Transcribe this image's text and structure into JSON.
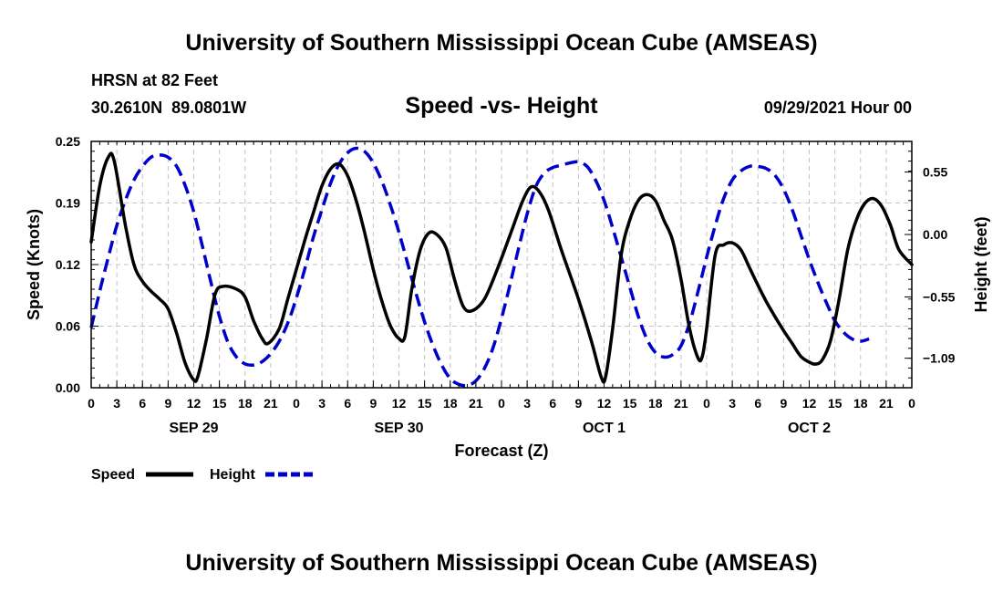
{
  "header": {
    "title": "University of Southern Mississippi Ocean Cube (AMSEAS)",
    "station": "HRSN at 82 Feet",
    "coords": "30.2610N  89.0801W",
    "subtitle": "Speed -vs- Height",
    "date": "09/29/2021 Hour 00"
  },
  "footer": {
    "title": "University of Southern Mississippi Ocean Cube (AMSEAS)"
  },
  "chart_data": {
    "type": "line",
    "title": "Speed -vs- Height",
    "xlabel": "Forecast (Z)",
    "ylabel_left": "Speed (Knots)",
    "ylabel_right": "Height (feet)",
    "x_range_hours": [
      0,
      96
    ],
    "ylim_left": [
      0,
      0.25
    ],
    "ylim_right": [
      -1.35,
      0.82
    ],
    "left_ticks": [
      "0.00",
      "0.06",
      "0.12",
      "0.19",
      "0.25"
    ],
    "left_tick_values": [
      0,
      0.0625,
      0.125,
      0.1875,
      0.25
    ],
    "right_ticks": [
      "0.55",
      "0.00",
      "−0.55",
      "−1.09"
    ],
    "right_tick_values": [
      0.55,
      0.0,
      -0.55,
      -1.09
    ],
    "x_tick_labels": [
      "0",
      "3",
      "6",
      "9",
      "12",
      "15",
      "18",
      "21",
      "0",
      "3",
      "6",
      "9",
      "12",
      "15",
      "18",
      "21",
      "0",
      "3",
      "6",
      "9",
      "12",
      "15",
      "18",
      "21",
      "0",
      "3",
      "6",
      "9",
      "12",
      "15",
      "18",
      "21",
      "0"
    ],
    "day_labels": [
      {
        "label": "SEP 29",
        "hour": 12
      },
      {
        "label": "SEP 30",
        "hour": 36
      },
      {
        "label": "OCT 1",
        "hour": 60
      },
      {
        "label": "OCT 2",
        "hour": 84
      }
    ],
    "grid": true,
    "legend": [
      {
        "name": "Speed",
        "style": "solid",
        "color": "#000000"
      },
      {
        "name": "Height",
        "style": "dashed",
        "color": "#0000cc"
      }
    ],
    "series": [
      {
        "name": "Speed",
        "axis": "left",
        "color": "#000000",
        "points": [
          [
            0,
            0.148
          ],
          [
            1,
            0.205
          ],
          [
            2,
            0.234
          ],
          [
            2.7,
            0.23
          ],
          [
            4,
            0.165
          ],
          [
            5,
            0.125
          ],
          [
            6,
            0.108
          ],
          [
            7,
            0.098
          ],
          [
            8,
            0.09
          ],
          [
            9,
            0.08
          ],
          [
            10,
            0.055
          ],
          [
            11,
            0.025
          ],
          [
            12,
            0.008
          ],
          [
            12.5,
            0.012
          ],
          [
            13.5,
            0.05
          ],
          [
            14.5,
            0.095
          ],
          [
            15.5,
            0.103
          ],
          [
            17,
            0.1
          ],
          [
            18,
            0.092
          ],
          [
            19,
            0.068
          ],
          [
            20,
            0.05
          ],
          [
            20.7,
            0.045
          ],
          [
            22,
            0.06
          ],
          [
            23,
            0.09
          ],
          [
            24,
            0.12
          ],
          [
            25,
            0.15
          ],
          [
            26,
            0.178
          ],
          [
            27,
            0.205
          ],
          [
            28,
            0.222
          ],
          [
            29,
            0.227
          ],
          [
            30,
            0.215
          ],
          [
            31,
            0.19
          ],
          [
            32,
            0.157
          ],
          [
            33,
            0.12
          ],
          [
            34,
            0.088
          ],
          [
            35,
            0.063
          ],
          [
            36,
            0.05
          ],
          [
            36.7,
            0.052
          ],
          [
            37.5,
            0.1
          ],
          [
            38.5,
            0.14
          ],
          [
            39.5,
            0.157
          ],
          [
            40.5,
            0.155
          ],
          [
            41.5,
            0.142
          ],
          [
            42.5,
            0.11
          ],
          [
            43.5,
            0.083
          ],
          [
            44.5,
            0.078
          ],
          [
            46,
            0.09
          ],
          [
            47.5,
            0.12
          ],
          [
            49,
            0.155
          ],
          [
            50.5,
            0.19
          ],
          [
            51.5,
            0.204
          ],
          [
            52.5,
            0.198
          ],
          [
            53.5,
            0.18
          ],
          [
            55,
            0.14
          ],
          [
            57,
            0.09
          ],
          [
            58.5,
            0.048
          ],
          [
            59.7,
            0.01
          ],
          [
            60.2,
            0.012
          ],
          [
            61,
            0.06
          ],
          [
            62,
            0.135
          ],
          [
            63,
            0.17
          ],
          [
            64,
            0.19
          ],
          [
            65,
            0.196
          ],
          [
            66,
            0.19
          ],
          [
            67,
            0.17
          ],
          [
            68,
            0.15
          ],
          [
            69,
            0.11
          ],
          [
            70,
            0.06
          ],
          [
            71,
            0.03
          ],
          [
            71.5,
            0.032
          ],
          [
            72,
            0.06
          ],
          [
            73,
            0.135
          ],
          [
            74,
            0.145
          ],
          [
            75,
            0.147
          ],
          [
            76,
            0.14
          ],
          [
            77,
            0.122
          ],
          [
            78,
            0.104
          ],
          [
            79,
            0.087
          ],
          [
            80,
            0.072
          ],
          [
            81,
            0.058
          ],
          [
            82,
            0.045
          ],
          [
            83,
            0.032
          ],
          [
            84,
            0.026
          ],
          [
            84.7,
            0.024
          ],
          [
            85.5,
            0.028
          ],
          [
            86.5,
            0.048
          ],
          [
            87.5,
            0.09
          ],
          [
            88.5,
            0.14
          ],
          [
            89.5,
            0.17
          ],
          [
            90.5,
            0.187
          ],
          [
            91.5,
            0.192
          ],
          [
            92.5,
            0.184
          ],
          [
            93.5,
            0.165
          ],
          [
            94.5,
            0.14
          ],
          [
            96,
            0.125
          ]
        ]
      },
      {
        "name": "Height",
        "axis": "right",
        "color": "#0000cc",
        "points": [
          [
            0,
            -0.82
          ],
          [
            1,
            -0.5
          ],
          [
            2,
            -0.2
          ],
          [
            3,
            0.08
          ],
          [
            4,
            0.3
          ],
          [
            5,
            0.48
          ],
          [
            6,
            0.6
          ],
          [
            7,
            0.68
          ],
          [
            8,
            0.7
          ],
          [
            9,
            0.68
          ],
          [
            10,
            0.6
          ],
          [
            11,
            0.43
          ],
          [
            12,
            0.2
          ],
          [
            13,
            -0.1
          ],
          [
            14,
            -0.42
          ],
          [
            15,
            -0.72
          ],
          [
            16,
            -0.95
          ],
          [
            17,
            -1.08
          ],
          [
            18,
            -1.14
          ],
          [
            19,
            -1.15
          ],
          [
            20,
            -1.12
          ],
          [
            21,
            -1.05
          ],
          [
            22,
            -0.94
          ],
          [
            23,
            -0.78
          ],
          [
            24,
            -0.56
          ],
          [
            25,
            -0.3
          ],
          [
            26,
            -0.02
          ],
          [
            27,
            0.22
          ],
          [
            28,
            0.45
          ],
          [
            29,
            0.62
          ],
          [
            30,
            0.72
          ],
          [
            31,
            0.76
          ],
          [
            32,
            0.73
          ],
          [
            33,
            0.63
          ],
          [
            34,
            0.47
          ],
          [
            35,
            0.26
          ],
          [
            36,
            0.02
          ],
          [
            37,
            -0.25
          ],
          [
            38,
            -0.52
          ],
          [
            39,
            -0.77
          ],
          [
            40,
            -0.98
          ],
          [
            41,
            -1.15
          ],
          [
            42,
            -1.27
          ],
          [
            43,
            -1.32
          ],
          [
            44,
            -1.33
          ],
          [
            45,
            -1.29
          ],
          [
            46,
            -1.18
          ],
          [
            47,
            -1.0
          ],
          [
            48,
            -0.74
          ],
          [
            49,
            -0.44
          ],
          [
            50,
            -0.12
          ],
          [
            51,
            0.18
          ],
          [
            52,
            0.42
          ],
          [
            53,
            0.54
          ],
          [
            54,
            0.59
          ],
          [
            55,
            0.61
          ],
          [
            56,
            0.63
          ],
          [
            57,
            0.64
          ],
          [
            58,
            0.6
          ],
          [
            59,
            0.48
          ],
          [
            60,
            0.3
          ],
          [
            61,
            0.06
          ],
          [
            62,
            -0.2
          ],
          [
            63,
            -0.46
          ],
          [
            64,
            -0.72
          ],
          [
            65,
            -0.92
          ],
          [
            66,
            -1.04
          ],
          [
            67,
            -1.08
          ],
          [
            68,
            -1.06
          ],
          [
            69,
            -0.98
          ],
          [
            70,
            -0.78
          ],
          [
            71,
            -0.5
          ],
          [
            72,
            -0.2
          ],
          [
            73,
            0.08
          ],
          [
            74,
            0.32
          ],
          [
            75,
            0.48
          ],
          [
            76,
            0.56
          ],
          [
            77,
            0.6
          ],
          [
            78,
            0.6
          ],
          [
            79,
            0.58
          ],
          [
            80,
            0.52
          ],
          [
            81,
            0.4
          ],
          [
            82,
            0.22
          ],
          [
            83,
            0.0
          ],
          [
            84,
            -0.22
          ],
          [
            85,
            -0.42
          ],
          [
            86,
            -0.6
          ],
          [
            87,
            -0.76
          ],
          [
            88,
            -0.86
          ],
          [
            89,
            -0.92
          ],
          [
            90,
            -0.94
          ],
          [
            91,
            -0.92
          ]
        ]
      }
    ]
  }
}
